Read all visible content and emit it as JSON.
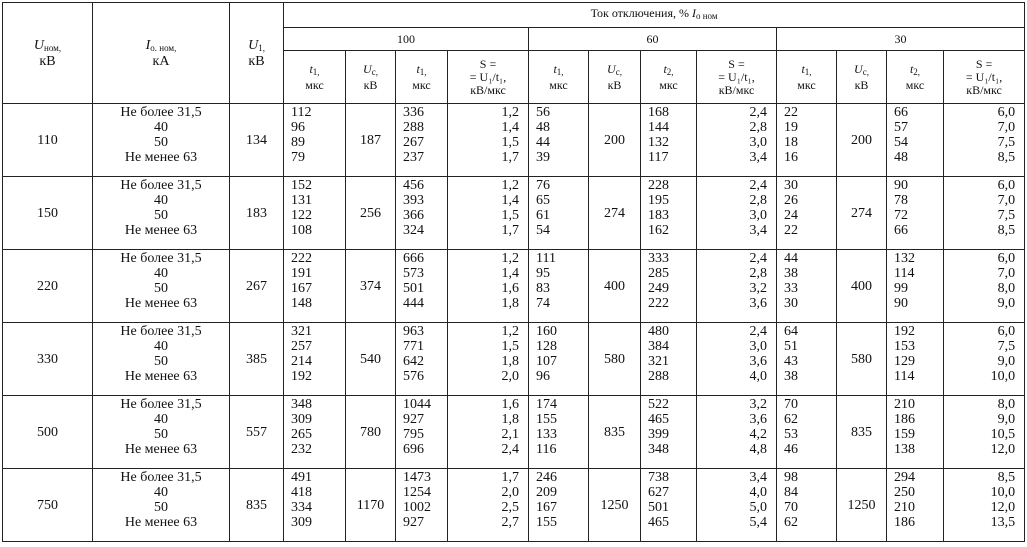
{
  "header": {
    "u_nom": {
      "symbol": "U",
      "sub": "ном,",
      "unit": "кВ"
    },
    "i_nom": {
      "symbol": "I",
      "sub": "о. ном,",
      "unit": "кА"
    },
    "u1": {
      "symbol": "U",
      "sub": "1,",
      "unit": "кВ"
    },
    "current": {
      "text": "Ток отключения, %",
      "symbol": "I",
      "sub": "о ном"
    },
    "groups": [
      {
        "label": "100",
        "columns": [
          {
            "symbol": "t",
            "sub": "1,",
            "unit": "мкс"
          },
          {
            "symbol": "U",
            "sub": "с,",
            "unit": "кВ"
          },
          {
            "symbol": "t",
            "sub": "1,",
            "unit": "мкс"
          },
          {
            "lines": [
              "S =",
              "= U₁/t₁,",
              "кВ/мкс"
            ]
          }
        ]
      },
      {
        "label": "60",
        "columns": [
          {
            "symbol": "t",
            "sub": "1,",
            "unit": "мкс"
          },
          {
            "symbol": "U",
            "sub": "с,",
            "unit": "кВ"
          },
          {
            "symbol": "t",
            "sub": "2,",
            "unit": "мкс"
          },
          {
            "lines": [
              "S =",
              "= U₁/t₁,",
              "кВ/мкс"
            ]
          }
        ]
      },
      {
        "label": "30",
        "columns": [
          {
            "symbol": "t",
            "sub": "1,",
            "unit": "мкс"
          },
          {
            "symbol": "U",
            "sub": "с,",
            "unit": "кВ"
          },
          {
            "symbol": "t",
            "sub": "2,",
            "unit": "мкс"
          },
          {
            "lines": [
              "S =",
              "= U₁/t₁,",
              "кВ/мкс"
            ]
          }
        ]
      }
    ]
  },
  "rows": [
    {
      "u_nom": "110",
      "i_nom": [
        "Не более 31,5",
        "40",
        "50",
        "Не менее 63"
      ],
      "u1": "134",
      "groups": [
        {
          "t1": [
            "112",
            "96",
            "89",
            "79"
          ],
          "uc": "187",
          "t2": [
            "336",
            "288",
            "267",
            "237"
          ],
          "s": [
            "1,2",
            "1,4",
            "1,5",
            "1,7"
          ]
        },
        {
          "t1": [
            "56",
            "48",
            "44",
            "39"
          ],
          "uc": "200",
          "t2": [
            "168",
            "144",
            "132",
            "117"
          ],
          "s": [
            "2,4",
            "2,8",
            "3,0",
            "3,4"
          ]
        },
        {
          "t1": [
            "22",
            "19",
            "18",
            "16"
          ],
          "uc": "200",
          "t2": [
            "66",
            "57",
            "54",
            "48"
          ],
          "s": [
            "6,0",
            "7,0",
            "7,5",
            "8,5"
          ]
        }
      ]
    },
    {
      "u_nom": "150",
      "i_nom": [
        "Не более 31,5",
        "40",
        "50",
        "Не менее 63"
      ],
      "u1": "183",
      "groups": [
        {
          "t1": [
            "152",
            "131",
            "122",
            "108"
          ],
          "uc": "256",
          "t2": [
            "456",
            "393",
            "366",
            "324"
          ],
          "s": [
            "1,2",
            "1,4",
            "1,5",
            "1,7"
          ]
        },
        {
          "t1": [
            "76",
            "65",
            "61",
            "54"
          ],
          "uc": "274",
          "t2": [
            "228",
            "195",
            "183",
            "162"
          ],
          "s": [
            "2,4",
            "2,8",
            "3,0",
            "3,4"
          ]
        },
        {
          "t1": [
            "30",
            "26",
            "24",
            "22"
          ],
          "uc": "274",
          "t2": [
            "90",
            "78",
            "72",
            "66"
          ],
          "s": [
            "6,0",
            "7,0",
            "7,5",
            "8,5"
          ]
        }
      ]
    },
    {
      "u_nom": "220",
      "i_nom": [
        "Не более 31,5",
        "40",
        "50",
        "Не менее 63"
      ],
      "u1": "267",
      "groups": [
        {
          "t1": [
            "222",
            "191",
            "167",
            "148"
          ],
          "uc": "374",
          "t2": [
            "666",
            "573",
            "501",
            "444"
          ],
          "s": [
            "1,2",
            "1,4",
            "1,6",
            "1,8"
          ]
        },
        {
          "t1": [
            "111",
            "95",
            "83",
            "74"
          ],
          "uc": "400",
          "t2": [
            "333",
            "285",
            "249",
            "222"
          ],
          "s": [
            "2,4",
            "2,8",
            "3,2",
            "3,6"
          ]
        },
        {
          "t1": [
            "44",
            "38",
            "33",
            "30"
          ],
          "uc": "400",
          "t2": [
            "132",
            "114",
            "99",
            "90"
          ],
          "s": [
            "6,0",
            "7,0",
            "8,0",
            "9,0"
          ]
        }
      ]
    },
    {
      "u_nom": "330",
      "i_nom": [
        "Не более 31,5",
        "40",
        "50",
        "Не менее 63"
      ],
      "u1": "385",
      "groups": [
        {
          "t1": [
            "321",
            "257",
            "214",
            "192"
          ],
          "uc": "540",
          "t2": [
            "963",
            "771",
            "642",
            "576"
          ],
          "s": [
            "1,2",
            "1,5",
            "1,8",
            "2,0"
          ]
        },
        {
          "t1": [
            "160",
            "128",
            "107",
            "96"
          ],
          "uc": "580",
          "t2": [
            "480",
            "384",
            "321",
            "288"
          ],
          "s": [
            "2,4",
            "3,0",
            "3,6",
            "4,0"
          ]
        },
        {
          "t1": [
            "64",
            "51",
            "43",
            "38"
          ],
          "uc": "580",
          "t2": [
            "192",
            "153",
            "129",
            "114"
          ],
          "s": [
            "6,0",
            "7,5",
            "9,0",
            "10,0"
          ]
        }
      ]
    },
    {
      "u_nom": "500",
      "i_nom": [
        "Не более 31,5",
        "40",
        "50",
        "Не менее 63"
      ],
      "u1": "557",
      "groups": [
        {
          "t1": [
            "348",
            "309",
            "265",
            "232"
          ],
          "uc": "780",
          "t2": [
            "1044",
            "927",
            "795",
            "696"
          ],
          "s": [
            "1,6",
            "1,8",
            "2,1",
            "2,4"
          ]
        },
        {
          "t1": [
            "174",
            "155",
            "133",
            "116"
          ],
          "uc": "835",
          "t2": [
            "522",
            "465",
            "399",
            "348"
          ],
          "s": [
            "3,2",
            "3,6",
            "4,2",
            "4,8"
          ]
        },
        {
          "t1": [
            "70",
            "62",
            "53",
            "46"
          ],
          "uc": "835",
          "t2": [
            "210",
            "186",
            "159",
            "138"
          ],
          "s": [
            "8,0",
            "9,0",
            "10,5",
            "12,0"
          ]
        }
      ]
    },
    {
      "u_nom": "750",
      "i_nom": [
        "Не более 31,5",
        "40",
        "50",
        "Не менее 63"
      ],
      "u1": "835",
      "groups": [
        {
          "t1": [
            "491",
            "418",
            "334",
            "309"
          ],
          "uc": "1170",
          "t2": [
            "1473",
            "1254",
            "1002",
            "927"
          ],
          "s": [
            "1,7",
            "2,0",
            "2,5",
            "2,7"
          ]
        },
        {
          "t1": [
            "246",
            "209",
            "167",
            "155"
          ],
          "uc": "1250",
          "t2": [
            "738",
            "627",
            "501",
            "465"
          ],
          "s": [
            "3,4",
            "4,0",
            "5,0",
            "5,4"
          ]
        },
        {
          "t1": [
            "98",
            "84",
            "70",
            "62"
          ],
          "uc": "1250",
          "t2": [
            "294",
            "250",
            "210",
            "186"
          ],
          "s": [
            "8,5",
            "10,0",
            "12,0",
            "13,5"
          ]
        }
      ]
    }
  ]
}
